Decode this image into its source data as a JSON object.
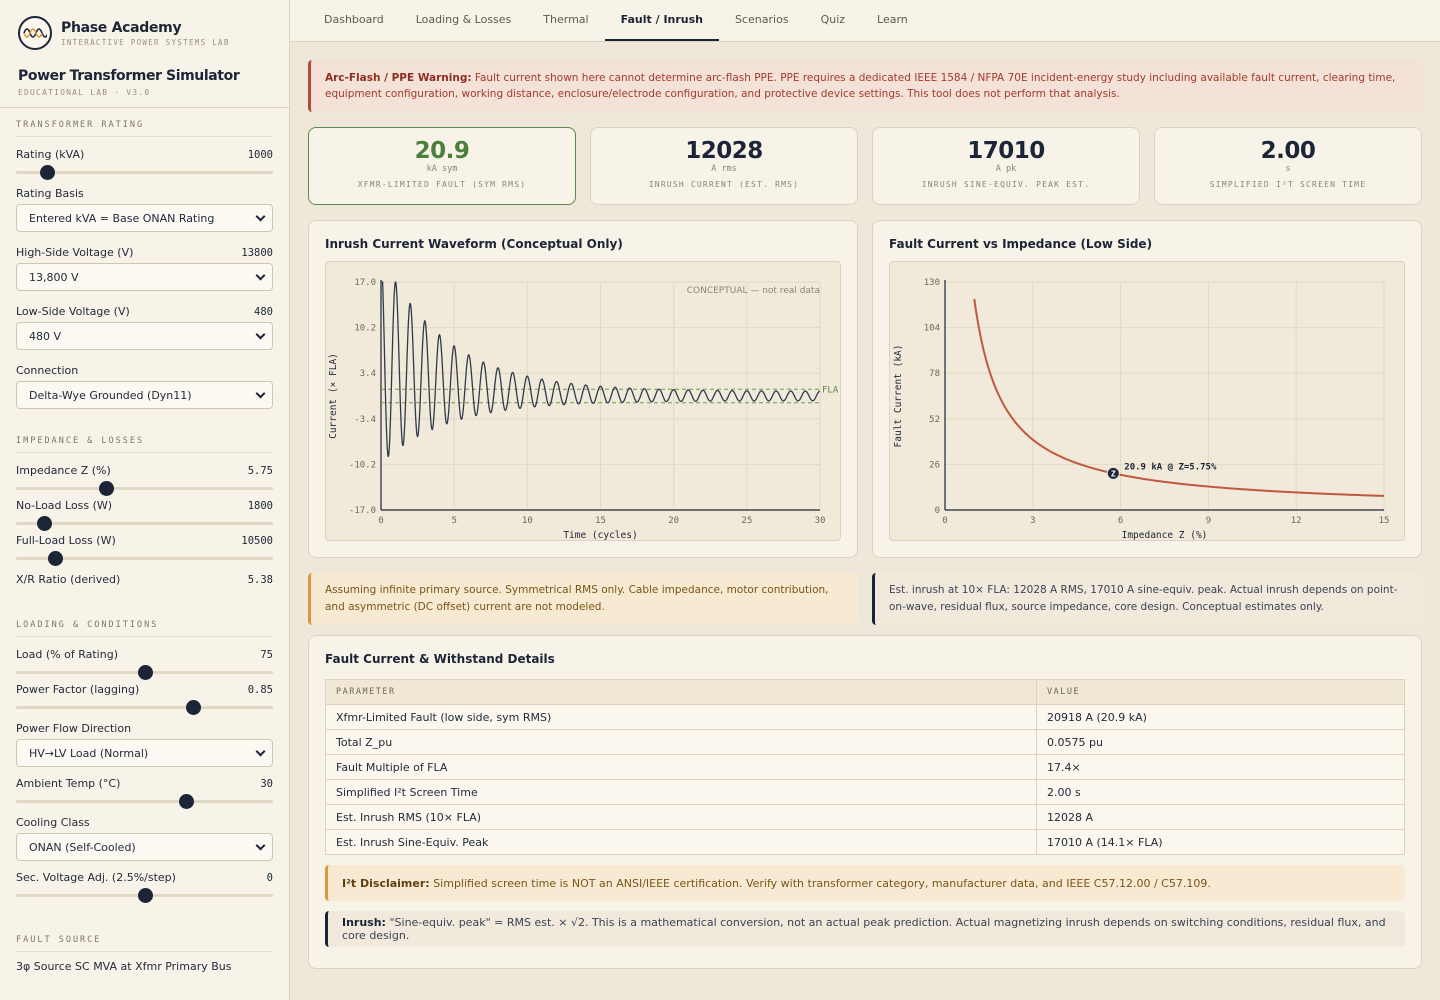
{
  "brand": {
    "name": "Phase Academy",
    "subtitle": "INTERACTIVE POWER SYSTEMS LAB"
  },
  "app": {
    "title": "Power Transformer Simulator",
    "version": "EDUCATIONAL LAB · V3.0"
  },
  "sidebar": {
    "rating_section": "TRANSFORMER RATING",
    "rating_kva": {
      "label": "Rating (kVA)",
      "value": "1000",
      "level": 0.12
    },
    "rating_basis": {
      "label": "Rating Basis",
      "selected": "Entered kVA = Base ONAN Rating"
    },
    "hv": {
      "label": "High-Side Voltage (V)",
      "value": "13800",
      "selected": "13,800 V"
    },
    "lv": {
      "label": "Low-Side Voltage (V)",
      "value": "480",
      "selected": "480 V"
    },
    "connection": {
      "label": "Connection",
      "selected": "Delta-Wye Grounded (Dyn11)"
    },
    "impedance_section": "IMPEDANCE & LOSSES",
    "impedance": {
      "label": "Impedance Z (%)",
      "value": "5.75",
      "level": 0.35
    },
    "noload": {
      "label": "No-Load Loss (W)",
      "value": "1800",
      "level": 0.11
    },
    "fullload": {
      "label": "Full-Load Loss (W)",
      "value": "10500",
      "level": 0.15
    },
    "xr": {
      "label": "X/R Ratio (derived)",
      "value": "5.38"
    },
    "loading_section": "LOADING & CONDITIONS",
    "load": {
      "label": "Load (% of Rating)",
      "value": "75",
      "level": 0.5
    },
    "pf": {
      "label": "Power Factor (lagging)",
      "value": "0.85",
      "level": 0.69
    },
    "flow": {
      "label": "Power Flow Direction",
      "selected": "HV→LV Load (Normal)"
    },
    "ambient": {
      "label": "Ambient Temp (°C)",
      "value": "30",
      "level": 0.66
    },
    "cooling": {
      "label": "Cooling Class",
      "selected": "ONAN (Self-Cooled)"
    },
    "tap": {
      "label": "Sec. Voltage Adj. (2.5%/step)",
      "value": "0",
      "level": 0.5
    },
    "fault_section": "FAULT SOURCE",
    "source_label": "3φ Source SC MVA at Xfmr Primary Bus"
  },
  "tabs": [
    "Dashboard",
    "Loading & Losses",
    "Thermal",
    "Fault / Inrush",
    "Scenarios",
    "Quiz",
    "Learn"
  ],
  "active_tab": "Fault / Inrush",
  "warning": {
    "title": "Arc-Flash / PPE Warning:",
    "text": "Fault current shown here cannot determine arc-flash PPE. PPE requires a dedicated IEEE 1584 / NFPA 70E incident-energy study including available fault current, clearing time, equipment configuration, working distance, enclosure/electrode configuration, and protective device settings. This tool does not perform that analysis."
  },
  "metrics": [
    {
      "value": "20.9",
      "unit": "kA sym",
      "label": "XFMR-LIMITED FAULT (SYM RMS)"
    },
    {
      "value": "12028",
      "unit": "A rms",
      "label": "INRUSH CURRENT (EST. RMS)"
    },
    {
      "value": "17010",
      "unit": "A pk",
      "label": "INRUSH SINE-EQUIV. PEAK EST."
    },
    {
      "value": "2.00",
      "unit": "s",
      "label": "SIMPLIFIED I²T SCREEN TIME"
    }
  ],
  "chart_data": [
    {
      "type": "line",
      "title": "Inrush Current Waveform (Conceptual Only)",
      "xlabel": "Time (cycles)",
      "ylabel": "Current (× FLA)",
      "xlim": [
        0,
        30
      ],
      "ylim": [
        -17,
        17
      ],
      "xticks": [
        "0",
        "5",
        "10",
        "15",
        "20",
        "25",
        "30"
      ],
      "yticks": [
        "17.0",
        "10.2",
        "3.4",
        "-3.4",
        "-10.2",
        "-17.0"
      ],
      "annotation": "CONCEPTUAL — not real data",
      "reference_lines": [
        {
          "label": "FLA",
          "value": 1
        },
        {
          "value": -1
        }
      ],
      "series": [
        {
          "peak_start": 15.5,
          "decay_per_cycle": 0.22,
          "offset_start": 6.5,
          "steady_amplitude": 0.7
        }
      ]
    },
    {
      "type": "line",
      "title": "Fault Current vs Impedance (Low Side)",
      "xlabel": "Impedance Z (%)",
      "ylabel": "Fault Current (kA)",
      "xlim": [
        0,
        15
      ],
      "ylim": [
        0,
        130
      ],
      "xticks": [
        "0",
        "3",
        "6",
        "9",
        "12",
        "15"
      ],
      "yticks": [
        "130",
        "104",
        "78",
        "52",
        "26",
        "0"
      ],
      "x": [
        1,
        1.5,
        2,
        2.5,
        3,
        4,
        5,
        5.75,
        7,
        8,
        9,
        10,
        11,
        12,
        13,
        14,
        15
      ],
      "y": [
        120.3,
        80.2,
        60.1,
        48.1,
        40.1,
        30.1,
        24.1,
        20.9,
        17.2,
        15.0,
        13.4,
        12.0,
        10.9,
        10.0,
        9.3,
        8.6,
        8.0
      ],
      "marker": {
        "x": 5.75,
        "y": 20.9,
        "symbol": "Z",
        "label": "20.9 kA @ Z=5.75%"
      }
    }
  ],
  "notes": {
    "fault": "Assuming infinite primary source. Symmetrical RMS only. Cable impedance, motor contribution, and asymmetric (DC offset) current are not modeled.",
    "inrush": "Est. inrush at 10× FLA: 12028 A RMS, 17010 A sine-equiv. peak. Actual inrush depends on point-on-wave, residual flux, source impedance, core design. Conceptual estimates only."
  },
  "details": {
    "title": "Fault Current & Withstand Details",
    "headers": [
      "PARAMETER",
      "VALUE"
    ],
    "rows": [
      [
        "Xfmr-Limited Fault (low side, sym RMS)",
        "20918 A (20.9 kA)"
      ],
      [
        "Total Z_pu",
        "0.0575 pu"
      ],
      [
        "Fault Multiple of FLA",
        "17.4×"
      ],
      [
        "Simplified I²t Screen Time",
        "2.00 s"
      ],
      [
        "Est. Inrush RMS (10× FLA)",
        "12028 A"
      ],
      [
        "Est. Inrush Sine-Equiv. Peak",
        "17010 A (14.1× FLA)"
      ]
    ],
    "i2t_title": "I²t Disclaimer:",
    "i2t_text": "Simplified screen time is NOT an ANSI/IEEE certification. Verify with transformer category, manufacturer data, and IEEE C57.12.00 / C57.109.",
    "inrush_title": "Inrush:",
    "inrush_text": "\"Sine-equiv. peak\" = RMS est. × √2. This is a mathematical conversion, not an actual peak prediction. Actual magnetizing inrush depends on switching conditions, residual flux, and core design."
  },
  "colors": {
    "navy": "#1c2537",
    "green": "#4a7f3c",
    "danger": "#b24a3a",
    "amber": "#d89b3a",
    "curve": "#c0583f"
  }
}
